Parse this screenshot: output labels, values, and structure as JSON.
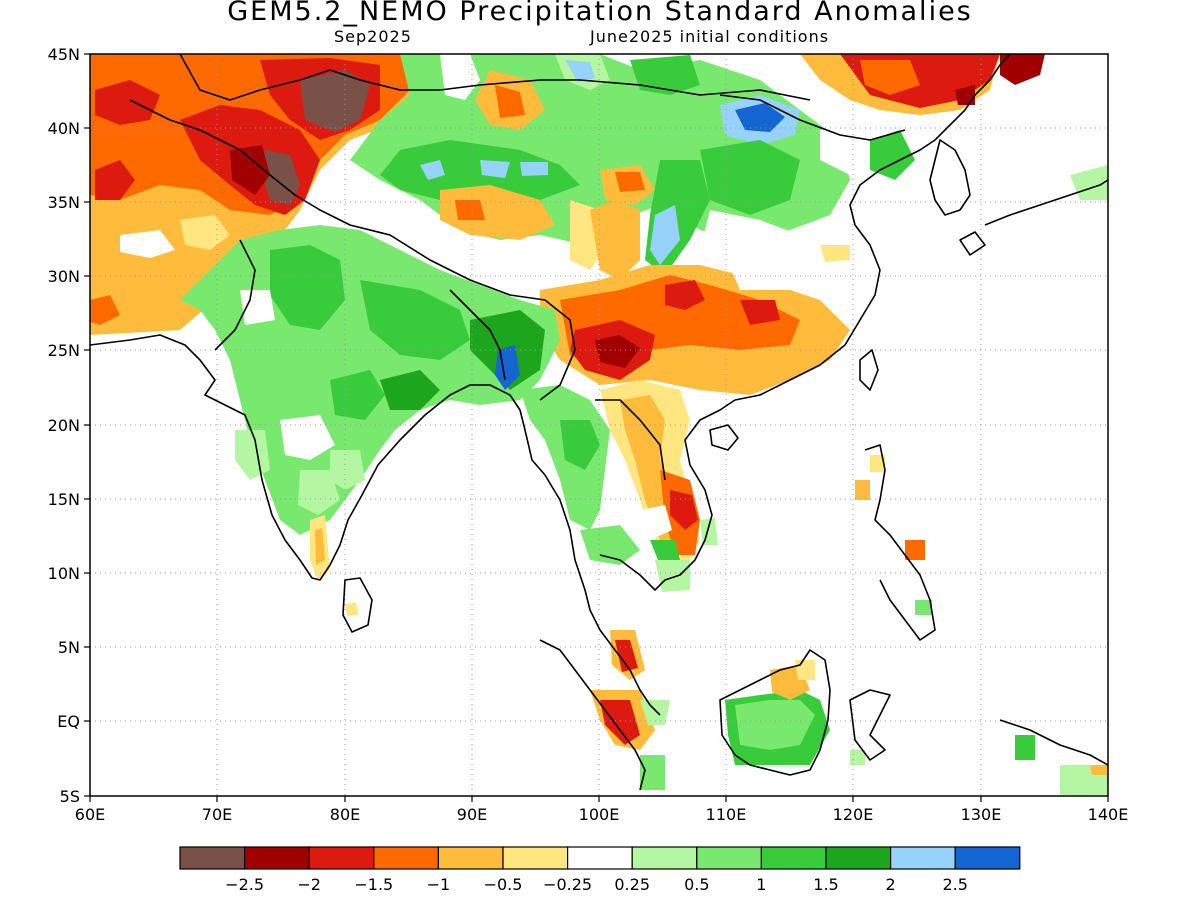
{
  "title": "GEM5.2_NEMO Precipitation Standard Anomalies",
  "subtitle_left": "Sep2025",
  "subtitle_right": "June2025 initial conditions",
  "axes": {
    "lon_ticks": [
      "60E",
      "70E",
      "80E",
      "90E",
      "100E",
      "110E",
      "120E",
      "130E",
      "140E"
    ],
    "lat_ticks": [
      "45N",
      "40N",
      "35N",
      "30N",
      "25N",
      "20N",
      "15N",
      "10N",
      "5N",
      "EQ",
      "5S"
    ]
  },
  "colorbar": {
    "colors": [
      "#7a5148",
      "#a00000",
      "#dc1a10",
      "#ff6a00",
      "#ffbb3b",
      "#ffe680",
      "#ffffff",
      "#b4f6a2",
      "#78e86e",
      "#38cc3c",
      "#1ea51e",
      "#96d2fa",
      "#1464d2"
    ],
    "labels": [
      "-2.5",
      "-2",
      "-1.5",
      "-1",
      "-0.5",
      "-0.25",
      "0.25",
      "0.5",
      "1",
      "1.5",
      "2",
      "2.5"
    ]
  }
}
